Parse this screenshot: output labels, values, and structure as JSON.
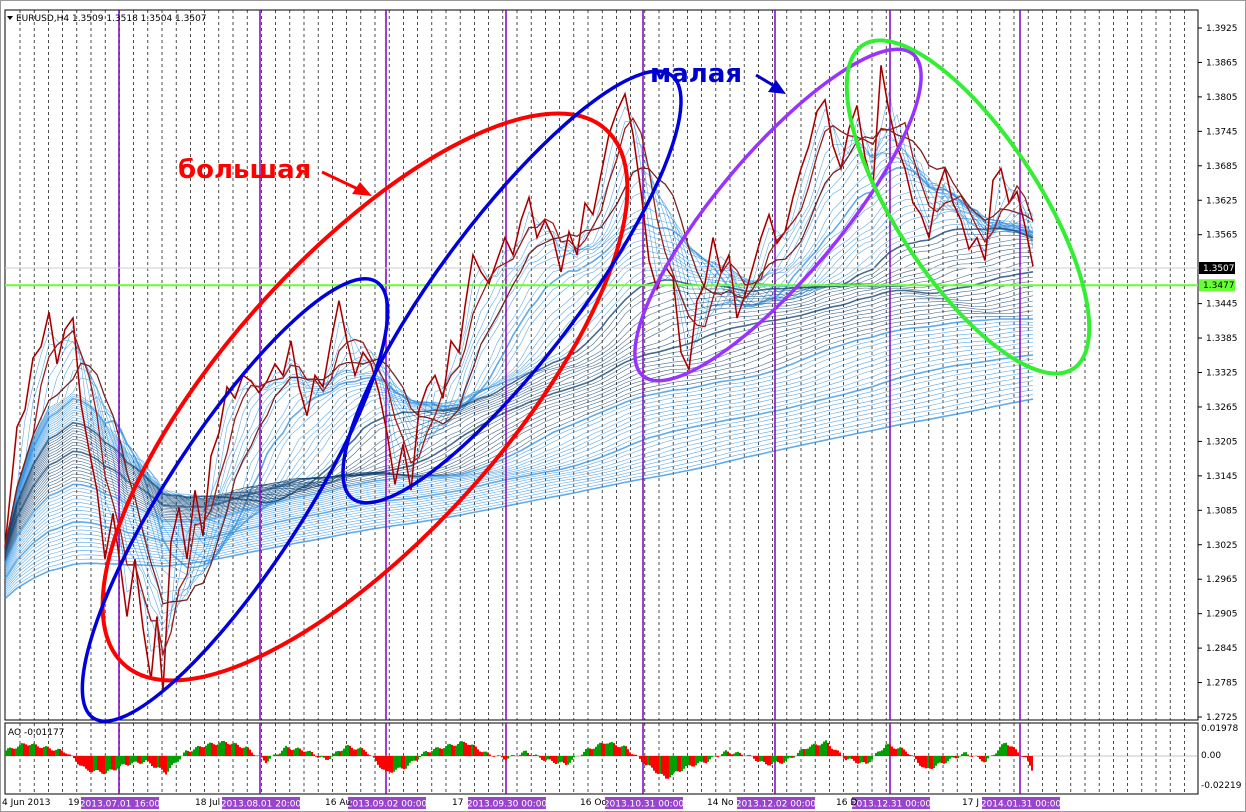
{
  "chart_data": {
    "type": "line",
    "symbol_header": "EURUSD,H4  1.3509 1.3518 1.3504 1.3507",
    "price_axis": {
      "labels": [
        "1.3925",
        "1.3865",
        "1.3805",
        "1.3745",
        "1.3685",
        "1.3625",
        "1.3565",
        "1.3445",
        "1.3385",
        "1.3325",
        "1.3265",
        "1.3205",
        "1.3145",
        "1.3085",
        "1.3025",
        "1.2965",
        "1.2905",
        "1.2845",
        "1.2785",
        "1.2725"
      ],
      "ylim": [
        1.2725,
        1.3925
      ]
    },
    "current_price": {
      "label": "1.3507",
      "value": 1.3507,
      "bg": "#000000",
      "fg": "#ffffff"
    },
    "hline": {
      "label": "1.3477",
      "value": 1.3477,
      "color": "#66ff33"
    },
    "date_labels": [
      "4 Jun 2013",
      "19",
      "18 Jul",
      "16 Au",
      "17",
      "16 Oc",
      "14 No",
      "16 D",
      "17 J"
    ],
    "period_separators": [
      "2013.07.01 16:00",
      "2013.08.01 20:00",
      "2013.09.02 00:00",
      "2013.09.30 00:00",
      "2013.10.31 00:00",
      "2013.12.02 00:00",
      "2013.12.31 00:00",
      "2014.01.31 00:00"
    ],
    "price_series": [
      [
        0,
        1.302
      ],
      [
        12,
        1.323
      ],
      [
        20,
        1.326
      ],
      [
        28,
        1.335
      ],
      [
        36,
        1.337
      ],
      [
        44,
        1.343
      ],
      [
        52,
        1.334
      ],
      [
        60,
        1.34
      ],
      [
        68,
        1.342
      ],
      [
        76,
        1.327
      ],
      [
        84,
        1.319
      ],
      [
        92,
        1.312
      ],
      [
        100,
        1.3
      ],
      [
        108,
        1.308
      ],
      [
        116,
        1.298
      ],
      [
        122,
        1.29
      ],
      [
        130,
        1.3
      ],
      [
        138,
        1.288
      ],
      [
        146,
        1.279
      ],
      [
        152,
        1.29
      ],
      [
        158,
        1.277
      ],
      [
        166,
        1.303
      ],
      [
        174,
        1.309
      ],
      [
        182,
        1.3
      ],
      [
        190,
        1.312
      ],
      [
        198,
        1.304
      ],
      [
        206,
        1.318
      ],
      [
        214,
        1.322
      ],
      [
        222,
        1.33
      ],
      [
        230,
        1.328
      ],
      [
        238,
        1.332
      ],
      [
        246,
        1.331
      ],
      [
        254,
        1.329
      ],
      [
        262,
        1.331
      ],
      [
        270,
        1.334
      ],
      [
        278,
        1.332
      ],
      [
        286,
        1.338
      ],
      [
        294,
        1.33
      ],
      [
        302,
        1.325
      ],
      [
        310,
        1.332
      ],
      [
        318,
        1.33
      ],
      [
        326,
        1.338
      ],
      [
        334,
        1.345
      ],
      [
        342,
        1.338
      ],
      [
        350,
        1.332
      ],
      [
        358,
        1.336
      ],
      [
        366,
        1.334
      ],
      [
        374,
        1.329
      ],
      [
        382,
        1.322
      ],
      [
        390,
        1.313
      ],
      [
        398,
        1.32
      ],
      [
        406,
        1.312
      ],
      [
        414,
        1.326
      ],
      [
        422,
        1.33
      ],
      [
        430,
        1.332
      ],
      [
        438,
        1.328
      ],
      [
        446,
        1.338
      ],
      [
        454,
        1.336
      ],
      [
        460,
        1.344
      ],
      [
        468,
        1.353
      ],
      [
        476,
        1.35
      ],
      [
        484,
        1.348
      ],
      [
        492,
        1.352
      ],
      [
        500,
        1.356
      ],
      [
        508,
        1.353
      ],
      [
        516,
        1.359
      ],
      [
        524,
        1.363
      ],
      [
        532,
        1.356
      ],
      [
        540,
        1.359
      ],
      [
        548,
        1.356
      ],
      [
        556,
        1.35
      ],
      [
        564,
        1.357
      ],
      [
        572,
        1.353
      ],
      [
        580,
        1.362
      ],
      [
        588,
        1.36
      ],
      [
        596,
        1.367
      ],
      [
        604,
        1.374
      ],
      [
        612,
        1.378
      ],
      [
        620,
        1.381
      ],
      [
        628,
        1.374
      ],
      [
        636,
        1.364
      ],
      [
        644,
        1.352
      ],
      [
        652,
        1.347
      ],
      [
        660,
        1.351
      ],
      [
        668,
        1.349
      ],
      [
        676,
        1.336
      ],
      [
        684,
        1.333
      ],
      [
        692,
        1.345
      ],
      [
        700,
        1.348
      ],
      [
        708,
        1.356
      ],
      [
        716,
        1.35
      ],
      [
        724,
        1.353
      ],
      [
        732,
        1.342
      ],
      [
        740,
        1.346
      ],
      [
        748,
        1.351
      ],
      [
        756,
        1.356
      ],
      [
        764,
        1.36
      ],
      [
        772,
        1.355
      ],
      [
        780,
        1.357
      ],
      [
        788,
        1.363
      ],
      [
        796,
        1.368
      ],
      [
        804,
        1.372
      ],
      [
        812,
        1.378
      ],
      [
        820,
        1.38
      ],
      [
        828,
        1.372
      ],
      [
        836,
        1.368
      ],
      [
        844,
        1.375
      ],
      [
        852,
        1.379
      ],
      [
        860,
        1.37
      ],
      [
        868,
        1.365
      ],
      [
        876,
        1.386
      ],
      [
        884,
        1.378
      ],
      [
        892,
        1.372
      ],
      [
        900,
        1.368
      ],
      [
        908,
        1.362
      ],
      [
        916,
        1.36
      ],
      [
        924,
        1.356
      ],
      [
        932,
        1.364
      ],
      [
        940,
        1.368
      ],
      [
        948,
        1.362
      ],
      [
        956,
        1.359
      ],
      [
        964,
        1.354
      ],
      [
        972,
        1.356
      ],
      [
        980,
        1.352
      ],
      [
        988,
        1.366
      ],
      [
        996,
        1.368
      ],
      [
        1004,
        1.362
      ],
      [
        1012,
        1.364
      ],
      [
        1020,
        1.358
      ],
      [
        1028,
        1.351
      ]
    ],
    "ao_axis": {
      "labels": [
        "0.01978",
        "0.00",
        "-0.02219"
      ]
    },
    "ao_label": "AO -0.01177",
    "ao_values": [
      [
        0,
        0.004
      ],
      [
        20,
        0.009
      ],
      [
        40,
        0.006
      ],
      [
        60,
        0.003
      ],
      [
        80,
        -0.01
      ],
      [
        100,
        -0.012
      ],
      [
        120,
        -0.006
      ],
      [
        140,
        -0.004
      ],
      [
        160,
        -0.012
      ],
      [
        180,
        0.003
      ],
      [
        200,
        0.008
      ],
      [
        220,
        0.01
      ],
      [
        240,
        0.006
      ],
      [
        260,
        -0.004
      ],
      [
        280,
        0.006
      ],
      [
        300,
        0.004
      ],
      [
        320,
        -0.003
      ],
      [
        340,
        0.007
      ],
      [
        360,
        0.004
      ],
      [
        380,
        -0.012
      ],
      [
        400,
        -0.008
      ],
      [
        420,
        0.003
      ],
      [
        440,
        0.007
      ],
      [
        460,
        0.01
      ],
      [
        480,
        0.002
      ],
      [
        500,
        -0.002
      ],
      [
        520,
        0.003
      ],
      [
        540,
        -0.003
      ],
      [
        560,
        -0.006
      ],
      [
        580,
        0.004
      ],
      [
        600,
        0.01
      ],
      [
        620,
        0.006
      ],
      [
        640,
        -0.006
      ],
      [
        660,
        -0.016
      ],
      [
        680,
        -0.008
      ],
      [
        700,
        -0.004
      ],
      [
        720,
        0.003
      ],
      [
        740,
        0.001
      ],
      [
        760,
        -0.006
      ],
      [
        780,
        -0.004
      ],
      [
        800,
        0.006
      ],
      [
        820,
        0.01
      ],
      [
        840,
        -0.002
      ],
      [
        860,
        -0.006
      ],
      [
        880,
        0.008
      ],
      [
        900,
        0.004
      ],
      [
        920,
        -0.01
      ],
      [
        940,
        -0.004
      ],
      [
        960,
        0.002
      ],
      [
        980,
        -0.004
      ],
      [
        1000,
        0.01
      ],
      [
        1020,
        -0.002
      ],
      [
        1028,
        -0.012
      ]
    ],
    "colors": {
      "up_ao": "#00a000",
      "down_ao": "#ff0000",
      "separator": "#8000c0",
      "ma_dark": "#0a3c6e",
      "ma_light": "#2b8fe0",
      "price": "#e00000"
    }
  },
  "annotations": {
    "big_label": "большая",
    "small_label": "малая",
    "big_color": "#ff0000",
    "small_color": "#0000cc",
    "ellipse_colors": {
      "big": "#ff0000",
      "blue": "#0000dd",
      "purple": "#9933ff",
      "green": "#33ee33"
    }
  }
}
